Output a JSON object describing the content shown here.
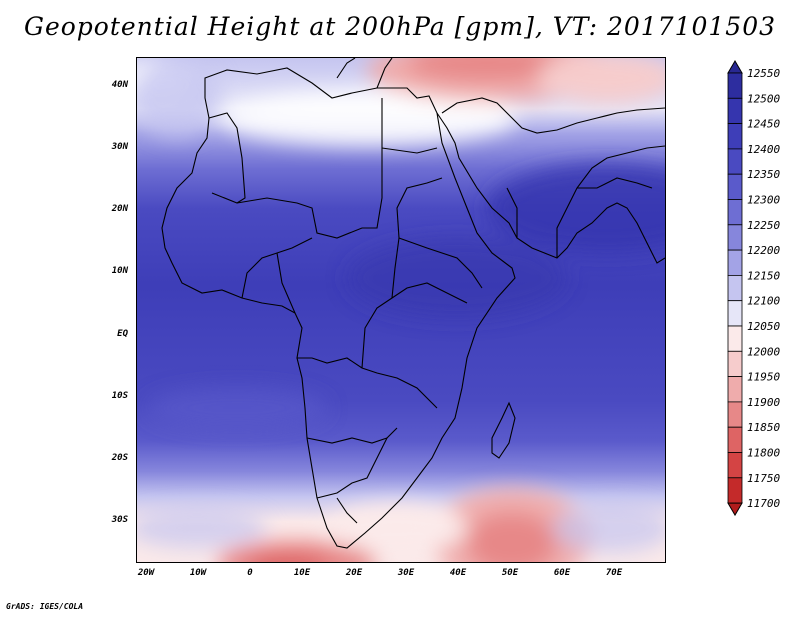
{
  "title": "Geopotential Height at 200hPa [gpm], VT: 2017101503",
  "credit": "GrADS: IGES/COLA",
  "map": {
    "region": "Africa, Middle East and Indian Ocean",
    "lat_labels": [
      "40N",
      "30N",
      "20N",
      "10N",
      "EQ",
      "10S",
      "20S",
      "30S"
    ],
    "lon_labels": [
      "20W",
      "10W",
      "0",
      "10E",
      "20E",
      "30E",
      "40E",
      "50E",
      "60E",
      "70E"
    ]
  },
  "legend": {
    "levels": [
      "12550",
      "12500",
      "12450",
      "12400",
      "12350",
      "12300",
      "12250",
      "12200",
      "12150",
      "12100",
      "12050",
      "12000",
      "11950",
      "11900",
      "11850",
      "11800",
      "11750",
      "11700"
    ],
    "colors": [
      "#282892",
      "#2d2d9f",
      "#3535ae",
      "#3e3eb8",
      "#4a4ac1",
      "#5a5acb",
      "#6e6ed3",
      "#8686dc",
      "#a3a3e6",
      "#c5c5f0",
      "#e6e6f8",
      "#fbeaea",
      "#f6cccc",
      "#efacac",
      "#e78888",
      "#de6464",
      "#d44444",
      "#c42a2a",
      "#b01c1c"
    ]
  }
}
